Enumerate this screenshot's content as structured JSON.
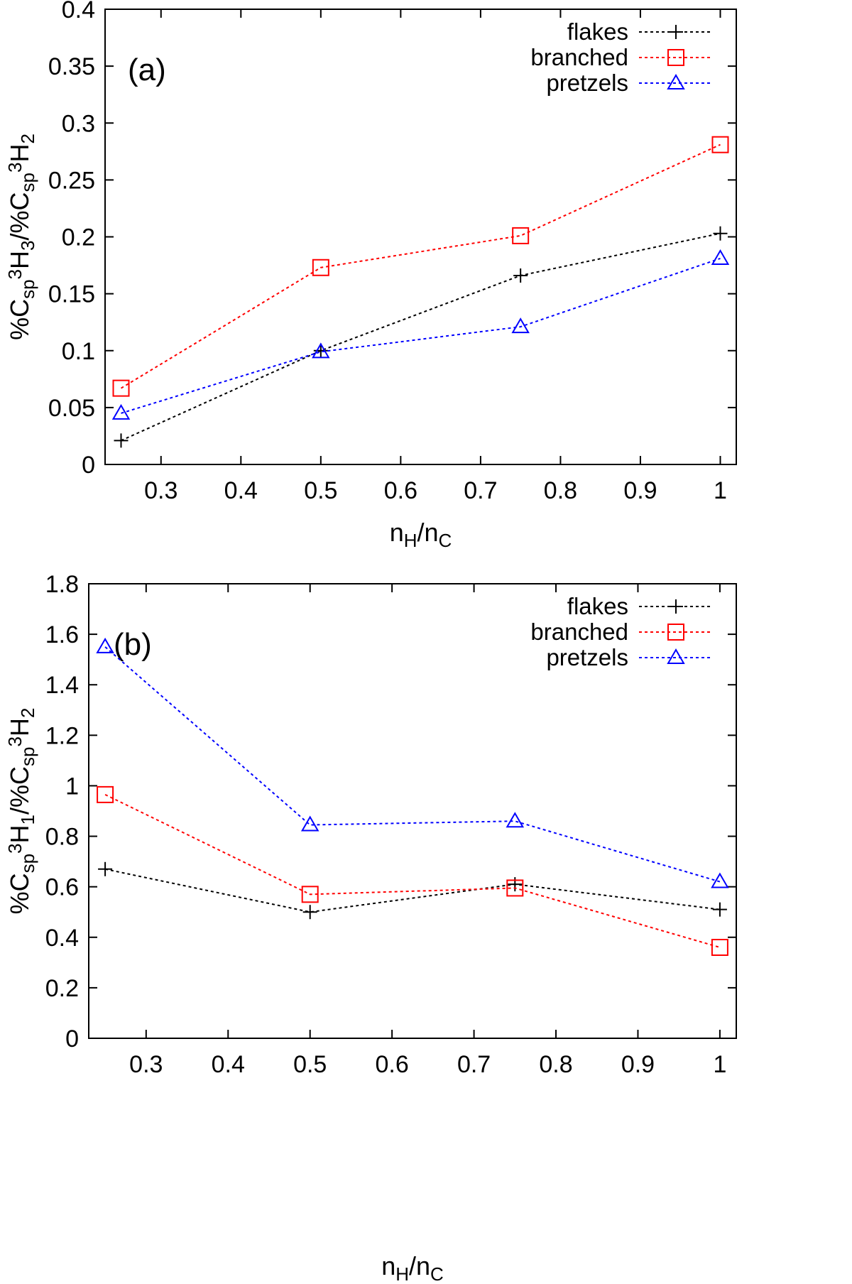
{
  "chart_data": [
    {
      "panel_label": "(a)",
      "type": "line",
      "x": [
        0.25,
        0.5,
        0.75,
        1
      ],
      "xlim": [
        0.23,
        1.02
      ],
      "ylim": [
        0,
        0.4
      ],
      "xticks": [
        0.3,
        0.4,
        0.5,
        0.6,
        0.7,
        0.8,
        0.9,
        1
      ],
      "yticks": [
        0,
        0.05,
        0.1,
        0.15,
        0.2,
        0.25,
        0.3,
        0.35,
        0.4
      ],
      "xlabel": {
        "main": "n",
        "sub1": "H",
        "mid": "/n",
        "sub2": "C"
      },
      "ylabel": {
        "p1": "%C",
        "s1": "sp",
        "p2": "3H",
        "s2": "3",
        "p3": "/%C",
        "s3": "sp",
        "p4": "3H",
        "s4": "2"
      },
      "legend_position": "top-right",
      "series": [
        {
          "name": "flakes",
          "color": "#000000",
          "marker": "plus",
          "values": [
            0.021,
            0.1,
            0.166,
            0.203
          ]
        },
        {
          "name": "branched",
          "color": "#ff0000",
          "marker": "square",
          "values": [
            0.067,
            0.173,
            0.201,
            0.281
          ]
        },
        {
          "name": "pretzels",
          "color": "#0000ff",
          "marker": "triangle",
          "values": [
            0.045,
            0.099,
            0.121,
            0.181
          ]
        }
      ]
    },
    {
      "panel_label": "(b)",
      "type": "line",
      "x": [
        0.25,
        0.5,
        0.75,
        1
      ],
      "xlim": [
        0.23,
        1.02
      ],
      "ylim": [
        0,
        1.8
      ],
      "xticks": [
        0.3,
        0.4,
        0.5,
        0.6,
        0.7,
        0.8,
        0.9,
        1
      ],
      "yticks": [
        0,
        0.2,
        0.4,
        0.6,
        0.8,
        1,
        1.2,
        1.4,
        1.6,
        1.8
      ],
      "xlabel": {
        "main": "n",
        "sub1": "H",
        "mid": "/n",
        "sub2": "C"
      },
      "ylabel": {
        "p1": "%C",
        "s1": "sp",
        "p2": "3H",
        "s2": "1",
        "p3": "/%C",
        "s3": "sp",
        "p4": "3H",
        "s4": "2"
      },
      "legend_position": "top-right",
      "series": [
        {
          "name": "flakes",
          "color": "#000000",
          "marker": "plus",
          "values": [
            0.67,
            0.5,
            0.61,
            0.51
          ]
        },
        {
          "name": "branched",
          "color": "#ff0000",
          "marker": "square",
          "values": [
            0.965,
            0.57,
            0.595,
            0.36
          ]
        },
        {
          "name": "pretzels",
          "color": "#0000ff",
          "marker": "triangle",
          "values": [
            1.55,
            0.845,
            0.86,
            0.62
          ]
        }
      ]
    }
  ]
}
